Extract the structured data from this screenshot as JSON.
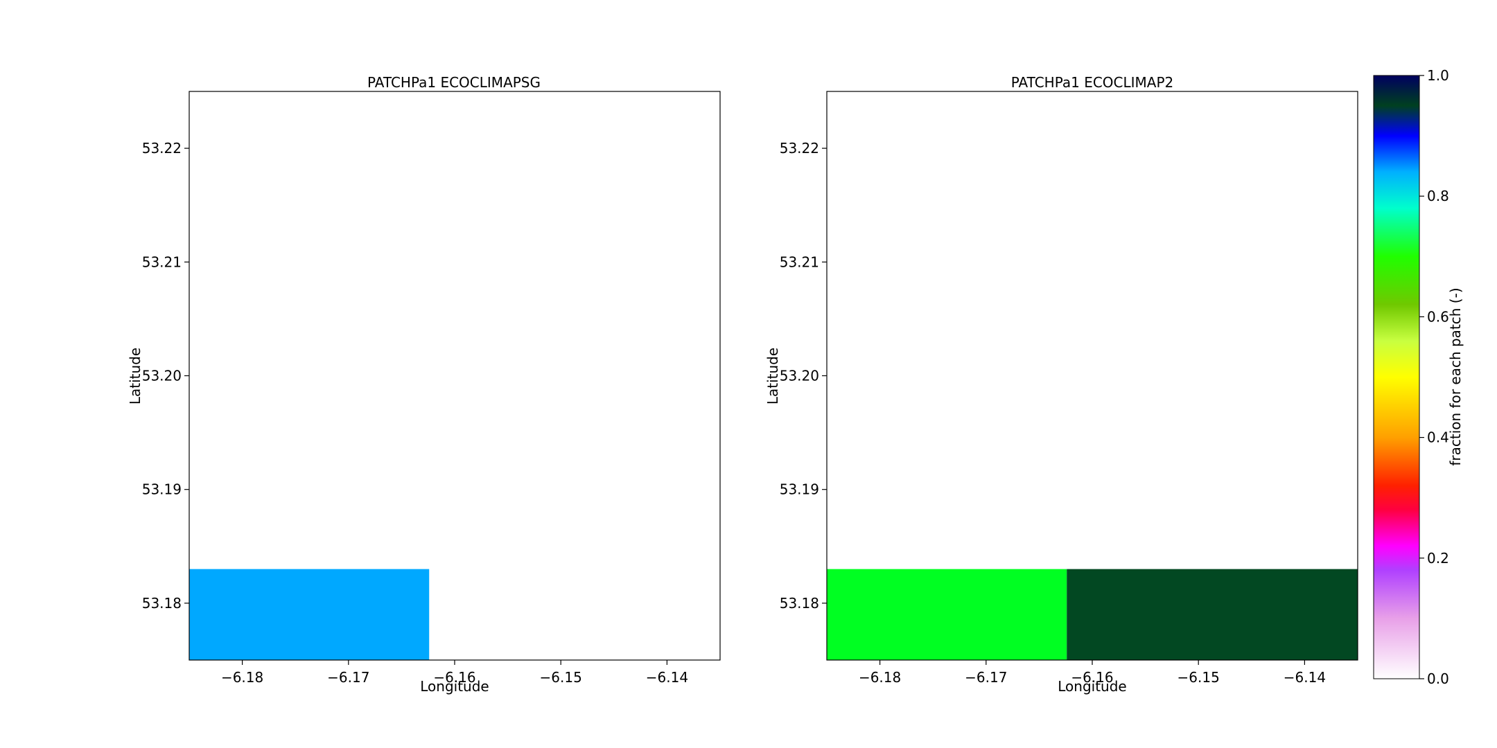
{
  "figure": {
    "type": "heatmap",
    "colorbar_label": "fraction for each patch (-)"
  },
  "chart_data": [
    {
      "type": "heatmap",
      "title": "PATCHPa1 ECOCLIMAPSG",
      "xlabel": "Longitude",
      "ylabel": "Latitude",
      "xlim": [
        -6.185,
        -6.135
      ],
      "ylim": [
        53.175,
        53.225
      ],
      "x_ticks": [
        -6.18,
        -6.17,
        -6.16,
        -6.15,
        -6.14
      ],
      "x_tick_labels": [
        "−6.18",
        "−6.17",
        "−6.16",
        "−6.15",
        "−6.14"
      ],
      "y_ticks": [
        53.18,
        53.19,
        53.2,
        53.21,
        53.22
      ],
      "y_tick_labels": [
        "53.18",
        "53.19",
        "53.20",
        "53.21",
        "53.22"
      ],
      "cells": [
        {
          "x0": -6.185,
          "x1": -6.1624,
          "y0": 53.175,
          "y1": 53.183,
          "value": 0.83,
          "color": "#00a8ff"
        }
      ]
    },
    {
      "type": "heatmap",
      "title": "PATCHPa1 ECOCLIMAP2",
      "xlabel": "Longitude",
      "ylabel": "Latitude",
      "xlim": [
        -6.185,
        -6.135
      ],
      "ylim": [
        53.175,
        53.225
      ],
      "x_ticks": [
        -6.18,
        -6.17,
        -6.16,
        -6.15,
        -6.14
      ],
      "x_tick_labels": [
        "−6.18",
        "−6.17",
        "−6.16",
        "−6.15",
        "−6.14"
      ],
      "y_ticks": [
        53.18,
        53.19,
        53.2,
        53.21,
        53.22
      ],
      "y_tick_labels": [
        "53.18",
        "53.19",
        "53.20",
        "53.21",
        "53.22"
      ],
      "cells": [
        {
          "x0": -6.185,
          "x1": -6.1624,
          "y0": 53.175,
          "y1": 53.183,
          "value": 0.68,
          "color": "#00ff22"
        },
        {
          "x0": -6.1624,
          "x1": -6.135,
          "y0": 53.175,
          "y1": 53.183,
          "value": 0.97,
          "color": "#024822"
        }
      ]
    }
  ],
  "colorbar": {
    "label": "fraction for each patch (-)",
    "range": [
      0.0,
      1.0
    ],
    "ticks": [
      0.0,
      0.2,
      0.4,
      0.6,
      0.8,
      1.0
    ],
    "tick_labels": [
      "0.0",
      "0.2",
      "0.4",
      "0.6",
      "0.8",
      "1.0"
    ],
    "stops": [
      {
        "v": 0.0,
        "color": "#ffffff"
      },
      {
        "v": 0.1,
        "color": "#e8a0e8"
      },
      {
        "v": 0.18,
        "color": "#b040ff"
      },
      {
        "v": 0.22,
        "color": "#ff00ff"
      },
      {
        "v": 0.28,
        "color": "#ff0040"
      },
      {
        "v": 0.32,
        "color": "#ff2000"
      },
      {
        "v": 0.4,
        "color": "#ffa000"
      },
      {
        "v": 0.5,
        "color": "#ffff00"
      },
      {
        "v": 0.56,
        "color": "#c8ff40"
      },
      {
        "v": 0.62,
        "color": "#70c800"
      },
      {
        "v": 0.7,
        "color": "#20ff00"
      },
      {
        "v": 0.78,
        "color": "#00ffcc"
      },
      {
        "v": 0.84,
        "color": "#00b0ff"
      },
      {
        "v": 0.9,
        "color": "#0000ff"
      },
      {
        "v": 0.95,
        "color": "#004020"
      },
      {
        "v": 1.0,
        "color": "#000060"
      }
    ]
  }
}
